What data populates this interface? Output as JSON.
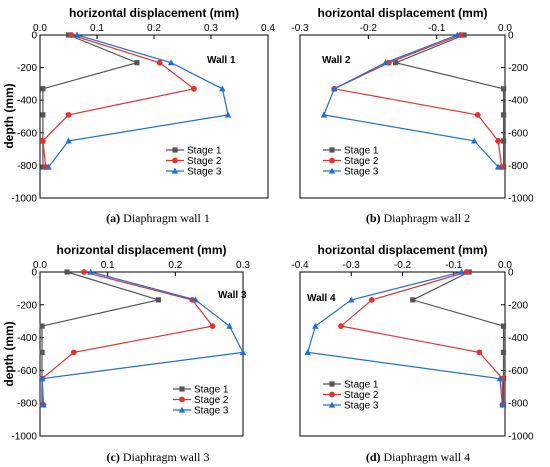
{
  "figure": {
    "captions": [
      {
        "letter": "(a)",
        "text": " Diaphragm wall 1"
      },
      {
        "letter": "(b)",
        "text": " Diaphragm wall 2"
      },
      {
        "letter": "(c)",
        "text": " Diaphragm wall 3"
      },
      {
        "letter": "(d)",
        "text": " Diaphragm wall 4"
      }
    ]
  },
  "colors": {
    "Stage 1": "#555555",
    "Stage 2": "#e8312f",
    "Stage 3": "#1f6fd6"
  },
  "chart_data": [
    {
      "type": "line",
      "title": "",
      "annotation": "Wall 1",
      "xlabel": "horizontal displacement (mm)",
      "ylabel": "depth (mm)",
      "xlim": [
        0,
        0.4
      ],
      "ylim": [
        -1000,
        0
      ],
      "xticks": [
        "0.0",
        "0.1",
        "0.2",
        "0.3",
        "0.4"
      ],
      "yticks": [
        "0",
        "-200",
        "-400",
        "-600",
        "-800",
        "-1000"
      ],
      "legend_position": "bottom-right",
      "series": [
        {
          "name": "Stage 1",
          "marker": "square",
          "points": [
            [
              0.05,
              0
            ],
            [
              0.17,
              -170
            ],
            [
              0.005,
              -330
            ],
            [
              0.005,
              -490
            ],
            [
              0.005,
              -650
            ],
            [
              0.005,
              -810
            ]
          ]
        },
        {
          "name": "Stage 2",
          "marker": "circle",
          "points": [
            [
              0.055,
              0
            ],
            [
              0.21,
              -170
            ],
            [
              0.27,
              -330
            ],
            [
              0.05,
              -490
            ],
            [
              0.005,
              -650
            ],
            [
              0.01,
              -810
            ]
          ]
        },
        {
          "name": "Stage 3",
          "marker": "triangle",
          "points": [
            [
              0.065,
              0
            ],
            [
              0.23,
              -170
            ],
            [
              0.32,
              -330
            ],
            [
              0.33,
              -490
            ],
            [
              0.05,
              -650
            ],
            [
              0.015,
              -810
            ]
          ]
        }
      ]
    },
    {
      "type": "line",
      "title": "",
      "annotation": "Wall 2",
      "xlabel": "horizontal displacement (mm)",
      "ylabel": "",
      "xlim": [
        -0.3,
        0
      ],
      "ylim": [
        -1000,
        0
      ],
      "xticks": [
        "-0.3",
        "-0.2",
        "-0.1",
        "0.0"
      ],
      "yticks": [
        "0",
        "-200",
        "-400",
        "-600",
        "-800",
        "-1000"
      ],
      "legend_position": "bottom-left",
      "series": [
        {
          "name": "Stage 1",
          "marker": "square",
          "points": [
            [
              -0.06,
              0
            ],
            [
              -0.16,
              -170
            ],
            [
              -0.002,
              -330
            ],
            [
              -0.002,
              -490
            ],
            [
              -0.002,
              -650
            ],
            [
              -0.002,
              -810
            ]
          ]
        },
        {
          "name": "Stage 2",
          "marker": "circle",
          "points": [
            [
              -0.065,
              0
            ],
            [
              -0.17,
              -170
            ],
            [
              -0.25,
              -330
            ],
            [
              -0.04,
              -490
            ],
            [
              -0.01,
              -650
            ],
            [
              -0.005,
              -810
            ]
          ]
        },
        {
          "name": "Stage 3",
          "marker": "triangle",
          "points": [
            [
              -0.07,
              0
            ],
            [
              -0.175,
              -170
            ],
            [
              -0.25,
              -330
            ],
            [
              -0.265,
              -490
            ],
            [
              -0.045,
              -650
            ],
            [
              -0.01,
              -810
            ]
          ]
        }
      ]
    },
    {
      "type": "line",
      "title": "",
      "annotation": "Wall 3",
      "xlabel": "horizontal displacement (mm)",
      "ylabel": "depth (mm)",
      "xlim": [
        0,
        0.3
      ],
      "ylim": [
        -1000,
        0
      ],
      "xticks": [
        "0.0",
        "0.1",
        "0.2",
        "0.3"
      ],
      "yticks": [
        "0",
        "-200",
        "-400",
        "-600",
        "-800",
        "-1000"
      ],
      "legend_position": "bottom-right",
      "series": [
        {
          "name": "Stage 1",
          "marker": "square",
          "points": [
            [
              0.04,
              0
            ],
            [
              0.175,
              -170
            ],
            [
              0.003,
              -330
            ],
            [
              0.003,
              -490
            ],
            [
              0.003,
              -650
            ],
            [
              0.003,
              -810
            ]
          ]
        },
        {
          "name": "Stage 2",
          "marker": "circle",
          "points": [
            [
              0.065,
              0
            ],
            [
              0.225,
              -170
            ],
            [
              0.255,
              -330
            ],
            [
              0.05,
              -490
            ],
            [
              0.003,
              -650
            ],
            [
              0.005,
              -810
            ]
          ]
        },
        {
          "name": "Stage 3",
          "marker": "triangle",
          "points": [
            [
              0.075,
              0
            ],
            [
              0.23,
              -170
            ],
            [
              0.28,
              -330
            ],
            [
              0.3,
              -490
            ],
            [
              0.003,
              -650
            ],
            [
              0.005,
              -810
            ]
          ]
        }
      ]
    },
    {
      "type": "line",
      "title": "",
      "annotation": "Wall 4",
      "xlabel": "horizontal displacement (mm)",
      "ylabel": "",
      "xlim": [
        -0.4,
        0
      ],
      "ylim": [
        -1000,
        0
      ],
      "xticks": [
        "-0.4",
        "-0.3",
        "-0.2",
        "-0.1",
        "0.0"
      ],
      "yticks": [
        "0",
        "-200",
        "-400",
        "-600",
        "-800",
        "-1000"
      ],
      "legend_position": "bottom-left",
      "series": [
        {
          "name": "Stage 1",
          "marker": "square",
          "points": [
            [
              -0.07,
              0
            ],
            [
              -0.18,
              -170
            ],
            [
              -0.003,
              -330
            ],
            [
              -0.003,
              -490
            ],
            [
              -0.003,
              -650
            ],
            [
              -0.003,
              -810
            ]
          ]
        },
        {
          "name": "Stage 2",
          "marker": "circle",
          "points": [
            [
              -0.075,
              0
            ],
            [
              -0.26,
              -170
            ],
            [
              -0.32,
              -330
            ],
            [
              -0.05,
              -490
            ],
            [
              -0.005,
              -650
            ],
            [
              -0.005,
              -810
            ]
          ]
        },
        {
          "name": "Stage 3",
          "marker": "triangle",
          "points": [
            [
              -0.085,
              0
            ],
            [
              -0.3,
              -170
            ],
            [
              -0.37,
              -330
            ],
            [
              -0.385,
              -490
            ],
            [
              -0.01,
              -650
            ],
            [
              -0.005,
              -810
            ]
          ]
        }
      ]
    }
  ]
}
